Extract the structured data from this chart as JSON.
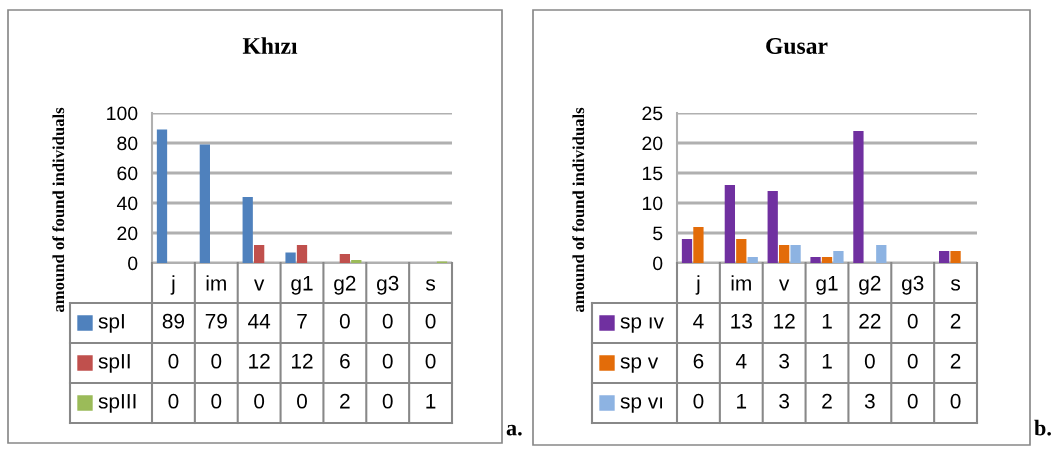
{
  "chart_data": [
    {
      "type": "bar",
      "title": "Khızı",
      "ylabel": "amound of found individuals",
      "categories": [
        "j",
        "im",
        "v",
        "g1",
        "g2",
        "g3",
        "s"
      ],
      "series": [
        {
          "name": "spI",
          "color": "#4f81bd",
          "values": [
            89,
            79,
            44,
            7,
            0,
            0,
            0
          ]
        },
        {
          "name": "spII",
          "color": "#c0504d",
          "values": [
            0,
            0,
            12,
            12,
            6,
            0,
            0
          ]
        },
        {
          "name": "spIII",
          "color": "#9bbb59",
          "values": [
            0,
            0,
            0,
            0,
            2,
            0,
            1
          ]
        }
      ],
      "ylim": [
        0,
        100
      ],
      "yticks": [
        0,
        20,
        40,
        60,
        80,
        100
      ],
      "grid": "y",
      "legend": "bottom left",
      "data_labels": true,
      "annotations": [
        "a."
      ]
    },
    {
      "type": "bar",
      "title": "Gusar",
      "ylabel": "amound of found individuals",
      "categories": [
        "j",
        "im",
        "v",
        "g1",
        "g2",
        "g3",
        "s"
      ],
      "series": [
        {
          "name": "sp ıv",
          "color": "#7030a0",
          "values": [
            4,
            13,
            12,
            1,
            22,
            0,
            2
          ]
        },
        {
          "name": "sp v",
          "color": "#e36c09",
          "values": [
            6,
            4,
            3,
            1,
            0,
            0,
            2
          ]
        },
        {
          "name": "sp vı",
          "color": "#8db3e2",
          "values": [
            0,
            1,
            3,
            2,
            3,
            0,
            0
          ]
        }
      ],
      "ylim": [
        0,
        25
      ],
      "yticks": [
        0,
        5,
        10,
        15,
        20,
        25
      ],
      "grid": "y",
      "legend": "bottom left",
      "data_labels": true,
      "annotations": [
        "b."
      ]
    }
  ]
}
